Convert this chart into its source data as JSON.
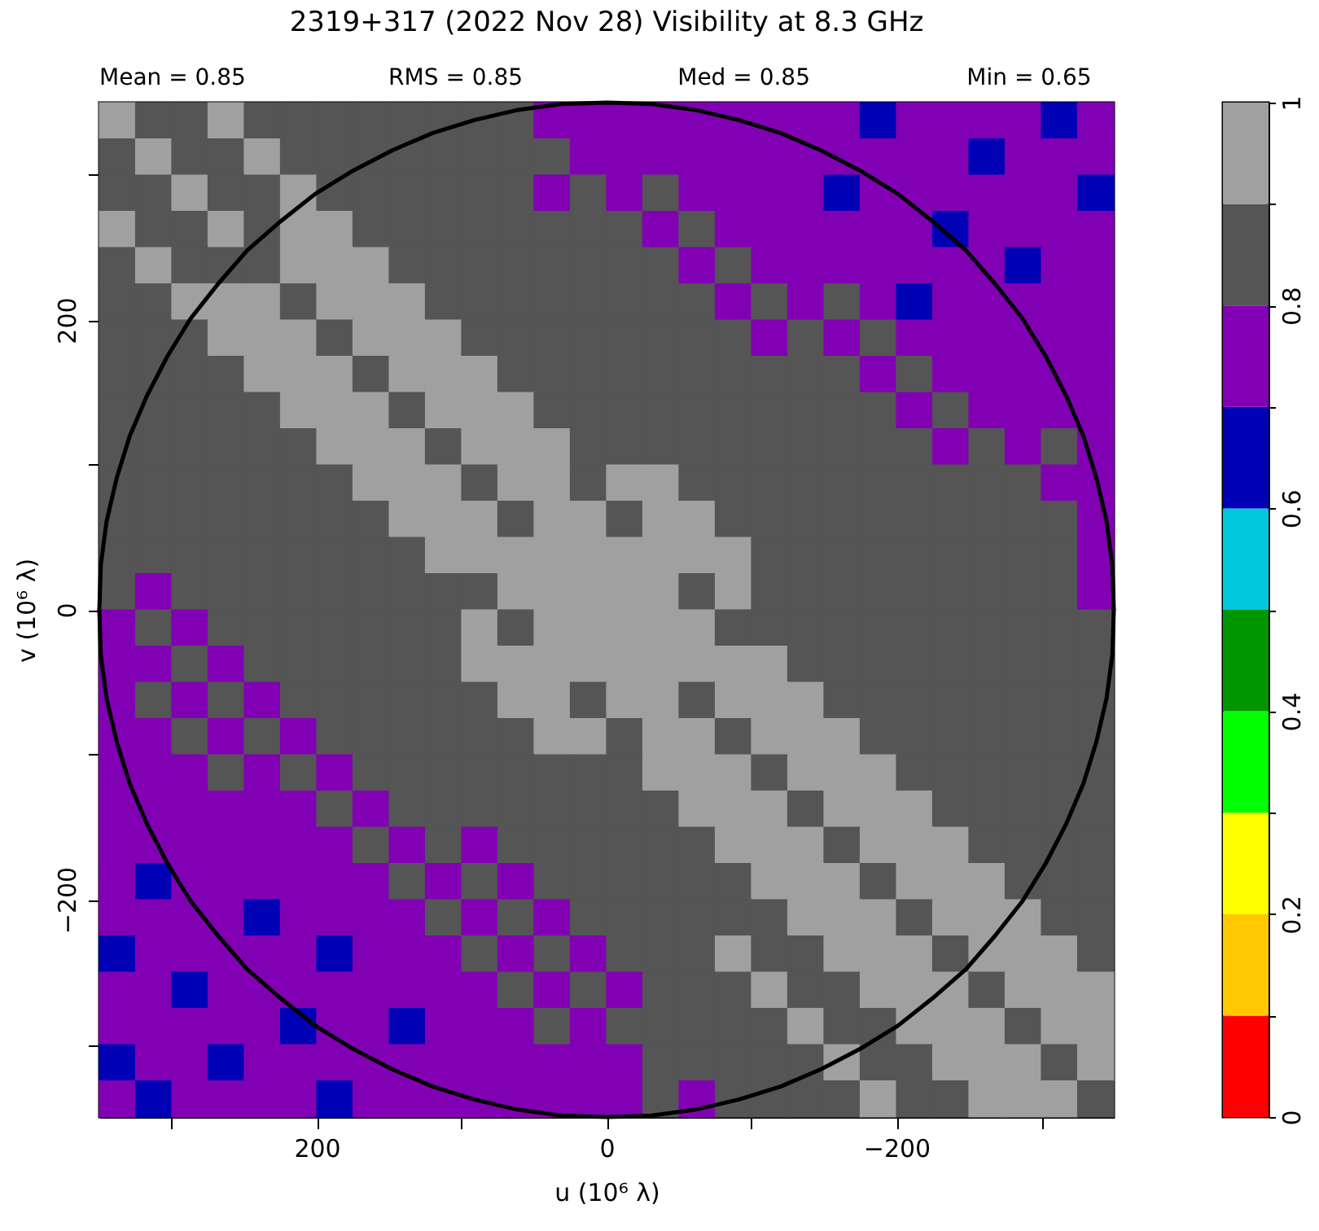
{
  "chart_data": {
    "type": "heatmap",
    "title": "2319+317  (2022 Nov 28)   Visibility at  8.3 GHz",
    "annotations": [
      "Mean =  0.85",
      "RMS =  0.85",
      "Med =  0.85",
      "Min =  0.65"
    ],
    "xlabel": "u  (10⁶ λ)",
    "ylabel": "v  (10⁶ λ)",
    "xlim": [
      350,
      -350
    ],
    "ylim": [
      -350,
      350
    ],
    "xticks": [
      {
        "value": 300,
        "label": null
      },
      200,
      {
        "value": 100,
        "label": null
      },
      0,
      {
        "value": -100,
        "label": null
      },
      {
        "value": -200,
        "label": "−200"
      },
      {
        "value": -300,
        "label": null
      }
    ],
    "yticks": [
      {
        "value": -300,
        "label": null
      },
      {
        "value": -200,
        "label": "−200"
      },
      {
        "value": -100,
        "label": null
      },
      0,
      {
        "value": 100,
        "label": null
      },
      200,
      {
        "value": 300,
        "label": null
      }
    ],
    "clim": [
      0,
      1
    ],
    "cticks": [
      0,
      {
        "value": 0.1,
        "label": null
      },
      0.2,
      {
        "value": 0.3,
        "label": null
      },
      0.4,
      {
        "value": 0.5,
        "label": null
      },
      0.6,
      {
        "value": 0.7,
        "label": null
      },
      0.8,
      {
        "value": 0.9,
        "label": null
      },
      1
    ],
    "colors": [
      "#ff0000",
      "#ffc800",
      "#ffff00",
      "#00ff00",
      "#009600",
      "#00c8dc",
      "#0000b4",
      "#8200b4",
      "#555555",
      "#a0a0a0"
    ],
    "x": [
      337.5,
      312.5,
      287.5,
      262.5,
      237.5,
      212.5,
      187.5,
      162.5,
      137.5,
      112.5,
      87.5,
      62.5,
      37.5,
      12.5,
      -12.5,
      -37.5,
      -62.5,
      -87.5,
      -112.5,
      -137.5,
      -162.5,
      -187.5,
      -212.5,
      -237.5,
      -262.5,
      -287.5,
      -312.5,
      -337.5
    ],
    "cells": [
      [
        0.95,
        0.85,
        0.85,
        0.95,
        0.85,
        0.85,
        0.85,
        0.85,
        0.85,
        0.85,
        0.85,
        0.85,
        0.75,
        0.75,
        0.75,
        0.75,
        0.75,
        0.75,
        0.75,
        0.75,
        0.75,
        0.65,
        0.75,
        0.75,
        0.75,
        0.75,
        0.65,
        0.75
      ],
      [
        0.85,
        0.95,
        0.85,
        0.85,
        0.95,
        0.85,
        0.85,
        0.85,
        0.85,
        0.85,
        0.85,
        0.85,
        0.85,
        0.75,
        0.75,
        0.75,
        0.75,
        0.75,
        0.75,
        0.75,
        0.75,
        0.75,
        0.75,
        0.75,
        0.65,
        0.75,
        0.75,
        0.75
      ],
      [
        0.85,
        0.85,
        0.95,
        0.85,
        0.85,
        0.95,
        0.85,
        0.85,
        0.85,
        0.85,
        0.85,
        0.85,
        0.75,
        0.85,
        0.75,
        0.85,
        0.75,
        0.75,
        0.75,
        0.75,
        0.65,
        0.75,
        0.75,
        0.75,
        0.75,
        0.75,
        0.75,
        0.65
      ],
      [
        0.95,
        0.85,
        0.85,
        0.95,
        0.85,
        0.95,
        0.95,
        0.85,
        0.85,
        0.85,
        0.85,
        0.85,
        0.85,
        0.85,
        0.85,
        0.75,
        0.85,
        0.75,
        0.75,
        0.75,
        0.75,
        0.75,
        0.75,
        0.65,
        0.75,
        0.75,
        0.75,
        0.75
      ],
      [
        0.85,
        0.95,
        0.85,
        0.85,
        0.85,
        0.95,
        0.95,
        0.95,
        0.85,
        0.85,
        0.85,
        0.85,
        0.85,
        0.85,
        0.85,
        0.85,
        0.75,
        0.85,
        0.75,
        0.75,
        0.75,
        0.75,
        0.75,
        0.75,
        0.75,
        0.65,
        0.75,
        0.75
      ],
      [
        0.85,
        0.85,
        0.95,
        0.95,
        0.95,
        0.85,
        0.95,
        0.95,
        0.95,
        0.85,
        0.85,
        0.85,
        0.85,
        0.85,
        0.85,
        0.85,
        0.85,
        0.75,
        0.85,
        0.75,
        0.85,
        0.75,
        0.65,
        0.75,
        0.75,
        0.75,
        0.75,
        0.75
      ],
      [
        0.85,
        0.85,
        0.85,
        0.95,
        0.95,
        0.95,
        0.85,
        0.95,
        0.95,
        0.95,
        0.85,
        0.85,
        0.85,
        0.85,
        0.85,
        0.85,
        0.85,
        0.85,
        0.75,
        0.85,
        0.75,
        0.85,
        0.75,
        0.75,
        0.75,
        0.75,
        0.75,
        0.75
      ],
      [
        0.85,
        0.85,
        0.85,
        0.85,
        0.95,
        0.95,
        0.95,
        0.85,
        0.95,
        0.95,
        0.95,
        0.85,
        0.85,
        0.85,
        0.85,
        0.85,
        0.85,
        0.85,
        0.85,
        0.85,
        0.85,
        0.75,
        0.85,
        0.75,
        0.75,
        0.75,
        0.75,
        0.75
      ],
      [
        0.85,
        0.85,
        0.85,
        0.85,
        0.85,
        0.95,
        0.95,
        0.95,
        0.85,
        0.95,
        0.95,
        0.95,
        0.85,
        0.85,
        0.85,
        0.85,
        0.85,
        0.85,
        0.85,
        0.85,
        0.85,
        0.85,
        0.75,
        0.85,
        0.75,
        0.75,
        0.75,
        0.75
      ],
      [
        0.85,
        0.85,
        0.85,
        0.85,
        0.85,
        0.85,
        0.95,
        0.95,
        0.95,
        0.85,
        0.95,
        0.95,
        0.95,
        0.85,
        0.85,
        0.85,
        0.85,
        0.85,
        0.85,
        0.85,
        0.85,
        0.85,
        0.85,
        0.75,
        0.85,
        0.75,
        0.85,
        0.75
      ],
      [
        0.85,
        0.85,
        0.85,
        0.85,
        0.85,
        0.85,
        0.85,
        0.95,
        0.95,
        0.95,
        0.85,
        0.95,
        0.95,
        0.85,
        0.95,
        0.95,
        0.85,
        0.85,
        0.85,
        0.85,
        0.85,
        0.85,
        0.85,
        0.85,
        0.85,
        0.85,
        0.75,
        0.75
      ],
      [
        0.85,
        0.85,
        0.85,
        0.85,
        0.85,
        0.85,
        0.85,
        0.85,
        0.95,
        0.95,
        0.95,
        0.85,
        0.95,
        0.95,
        0.85,
        0.95,
        0.95,
        0.85,
        0.85,
        0.85,
        0.85,
        0.85,
        0.85,
        0.85,
        0.85,
        0.85,
        0.85,
        0.75
      ],
      [
        0.85,
        0.85,
        0.85,
        0.85,
        0.85,
        0.85,
        0.85,
        0.85,
        0.85,
        0.95,
        0.95,
        0.95,
        0.95,
        0.95,
        0.95,
        0.95,
        0.95,
        0.95,
        0.85,
        0.85,
        0.85,
        0.85,
        0.85,
        0.85,
        0.85,
        0.85,
        0.85,
        0.75
      ],
      [
        0.85,
        0.75,
        0.85,
        0.85,
        0.85,
        0.85,
        0.85,
        0.85,
        0.85,
        0.85,
        0.85,
        0.95,
        0.95,
        0.95,
        0.95,
        0.95,
        0.85,
        0.95,
        0.85,
        0.85,
        0.85,
        0.85,
        0.85,
        0.85,
        0.85,
        0.85,
        0.85,
        0.75
      ],
      [
        0.75,
        0.85,
        0.75,
        0.85,
        0.85,
        0.85,
        0.85,
        0.85,
        0.85,
        0.85,
        0.95,
        0.85,
        0.95,
        0.95,
        0.95,
        0.95,
        0.95,
        0.85,
        0.85,
        0.85,
        0.85,
        0.85,
        0.85,
        0.85,
        0.85,
        0.85,
        0.85,
        0.85
      ],
      [
        0.75,
        0.75,
        0.85,
        0.75,
        0.85,
        0.85,
        0.85,
        0.85,
        0.85,
        0.85,
        0.95,
        0.95,
        0.95,
        0.95,
        0.95,
        0.95,
        0.95,
        0.95,
        0.95,
        0.85,
        0.85,
        0.85,
        0.85,
        0.85,
        0.85,
        0.85,
        0.85,
        0.85
      ],
      [
        0.75,
        0.85,
        0.75,
        0.85,
        0.75,
        0.85,
        0.85,
        0.85,
        0.85,
        0.85,
        0.85,
        0.95,
        0.95,
        0.85,
        0.95,
        0.95,
        0.85,
        0.95,
        0.95,
        0.95,
        0.85,
        0.85,
        0.85,
        0.85,
        0.85,
        0.85,
        0.85,
        0.85
      ],
      [
        0.75,
        0.75,
        0.85,
        0.75,
        0.85,
        0.75,
        0.85,
        0.85,
        0.85,
        0.85,
        0.85,
        0.85,
        0.95,
        0.95,
        0.85,
        0.95,
        0.95,
        0.85,
        0.95,
        0.95,
        0.95,
        0.85,
        0.85,
        0.85,
        0.85,
        0.85,
        0.85,
        0.85
      ],
      [
        0.75,
        0.75,
        0.75,
        0.85,
        0.75,
        0.85,
        0.75,
        0.85,
        0.85,
        0.85,
        0.85,
        0.85,
        0.85,
        0.85,
        0.85,
        0.95,
        0.95,
        0.95,
        0.85,
        0.95,
        0.95,
        0.95,
        0.85,
        0.85,
        0.85,
        0.85,
        0.85,
        0.85
      ],
      [
        0.75,
        0.75,
        0.75,
        0.75,
        0.75,
        0.75,
        0.85,
        0.75,
        0.85,
        0.85,
        0.85,
        0.85,
        0.85,
        0.85,
        0.85,
        0.85,
        0.95,
        0.95,
        0.95,
        0.85,
        0.95,
        0.95,
        0.95,
        0.85,
        0.85,
        0.85,
        0.85,
        0.85
      ],
      [
        0.75,
        0.75,
        0.75,
        0.75,
        0.75,
        0.75,
        0.75,
        0.85,
        0.75,
        0.85,
        0.75,
        0.85,
        0.85,
        0.85,
        0.85,
        0.85,
        0.85,
        0.95,
        0.95,
        0.95,
        0.85,
        0.95,
        0.95,
        0.95,
        0.85,
        0.85,
        0.85,
        0.85
      ],
      [
        0.75,
        0.65,
        0.75,
        0.75,
        0.75,
        0.75,
        0.75,
        0.75,
        0.85,
        0.75,
        0.85,
        0.75,
        0.85,
        0.85,
        0.85,
        0.85,
        0.85,
        0.85,
        0.95,
        0.95,
        0.95,
        0.85,
        0.95,
        0.95,
        0.95,
        0.85,
        0.85,
        0.85
      ],
      [
        0.75,
        0.75,
        0.75,
        0.75,
        0.65,
        0.75,
        0.75,
        0.75,
        0.75,
        0.85,
        0.75,
        0.85,
        0.75,
        0.85,
        0.85,
        0.85,
        0.85,
        0.85,
        0.85,
        0.95,
        0.95,
        0.95,
        0.85,
        0.95,
        0.95,
        0.95,
        0.85,
        0.85
      ],
      [
        0.65,
        0.75,
        0.75,
        0.75,
        0.75,
        0.75,
        0.65,
        0.75,
        0.75,
        0.75,
        0.85,
        0.75,
        0.85,
        0.75,
        0.85,
        0.85,
        0.85,
        0.95,
        0.85,
        0.85,
        0.95,
        0.95,
        0.95,
        0.85,
        0.95,
        0.95,
        0.95,
        0.85
      ],
      [
        0.75,
        0.75,
        0.65,
        0.75,
        0.75,
        0.75,
        0.75,
        0.75,
        0.75,
        0.75,
        0.75,
        0.85,
        0.75,
        0.85,
        0.75,
        0.85,
        0.85,
        0.85,
        0.95,
        0.85,
        0.85,
        0.95,
        0.95,
        0.95,
        0.85,
        0.95,
        0.95,
        0.95
      ],
      [
        0.75,
        0.75,
        0.75,
        0.75,
        0.75,
        0.65,
        0.75,
        0.75,
        0.65,
        0.75,
        0.75,
        0.75,
        0.85,
        0.75,
        0.85,
        0.85,
        0.85,
        0.85,
        0.85,
        0.95,
        0.85,
        0.85,
        0.95,
        0.95,
        0.95,
        0.85,
        0.95,
        0.95
      ],
      [
        0.65,
        0.75,
        0.75,
        0.65,
        0.75,
        0.75,
        0.75,
        0.75,
        0.75,
        0.75,
        0.75,
        0.75,
        0.75,
        0.75,
        0.75,
        0.85,
        0.85,
        0.85,
        0.85,
        0.85,
        0.95,
        0.85,
        0.85,
        0.95,
        0.95,
        0.95,
        0.85,
        0.95
      ],
      [
        0.75,
        0.65,
        0.75,
        0.75,
        0.75,
        0.75,
        0.65,
        0.75,
        0.75,
        0.75,
        0.75,
        0.75,
        0.75,
        0.75,
        0.75,
        0.85,
        0.75,
        0.85,
        0.85,
        0.85,
        0.85,
        0.95,
        0.85,
        0.85,
        0.95,
        0.95,
        0.95,
        0.85
      ]
    ],
    "series": [
      {
        "type": "line",
        "color": "#000000",
        "x": [
          350,
          349,
          345,
          338,
          329,
          317,
          303,
          287,
          268,
          248,
          225,
          201,
          175,
          148,
          120,
          91,
          61,
          31,
          0,
          -31,
          -61,
          -91,
          -120,
          -148,
          -175,
          -201,
          -225,
          -248,
          -268,
          -287,
          -303,
          -317,
          -329,
          -338,
          -345,
          -349,
          -350
        ],
        "values": [
          0,
          31,
          61,
          91,
          120,
          148,
          175,
          201,
          225,
          248,
          268,
          287,
          303,
          317,
          329,
          338,
          345,
          349,
          350,
          349,
          345,
          338,
          329,
          317,
          303,
          287,
          268,
          248,
          225,
          201,
          175,
          148,
          120,
          91,
          61,
          31,
          0
        ]
      },
      {
        "type": "line",
        "color": "#000000",
        "x": [
          350,
          349,
          345,
          338,
          329,
          317,
          303,
          287,
          268,
          248,
          225,
          201,
          175,
          148,
          120,
          91,
          61,
          31,
          0,
          -31,
          -61,
          -91,
          -120,
          -148,
          -175,
          -201,
          -225,
          -248,
          -268,
          -287,
          -303,
          -317,
          -329,
          -338,
          -345,
          -349,
          -350
        ],
        "values": [
          0,
          -31,
          -61,
          -91,
          -120,
          -148,
          -175,
          -201,
          -225,
          -248,
          -268,
          -287,
          -303,
          -317,
          -329,
          -338,
          -345,
          -349,
          -350,
          -349,
          -345,
          -338,
          -329,
          -317,
          -303,
          -287,
          -268,
          -248,
          -225,
          -201,
          -175,
          -148,
          -120,
          -91,
          -61,
          -31,
          0
        ]
      }
    ]
  }
}
